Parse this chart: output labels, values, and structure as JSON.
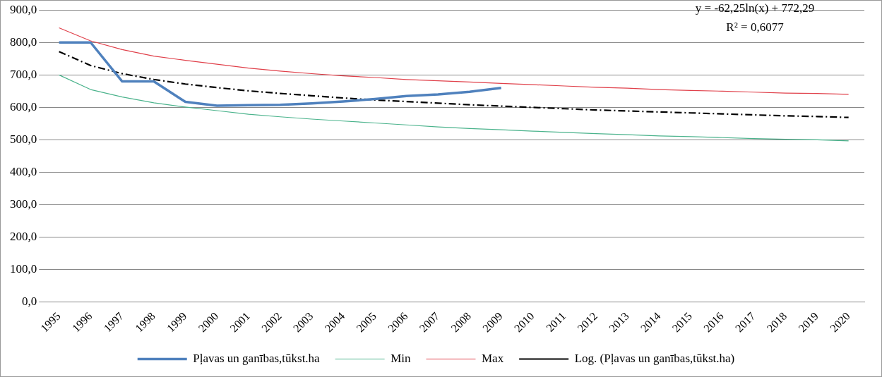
{
  "chart_data": {
    "type": "line",
    "categories": [
      "1995",
      "1996",
      "1997",
      "1998",
      "1999",
      "2000",
      "2001",
      "2002",
      "2003",
      "2004",
      "2005",
      "2006",
      "2007",
      "2008",
      "2009",
      "2010",
      "2011",
      "2012",
      "2013",
      "2014",
      "2015",
      "2016",
      "2017",
      "2018",
      "2019",
      "2020"
    ],
    "series": [
      {
        "name": "Pļavas un ganības,tūkst.ha",
        "color": "#4f81bd",
        "values": [
          800,
          800,
          680,
          680,
          617,
          605,
          607,
          608,
          612,
          618,
          626,
          635,
          640,
          648,
          660,
          null,
          null,
          null,
          null,
          null,
          null,
          null,
          null,
          null,
          null,
          null
        ]
      },
      {
        "name": "Min",
        "color": "#4bb38c",
        "values": [
          700,
          655,
          632,
          614,
          601,
          590,
          579,
          571,
          564,
          558,
          552,
          546,
          540,
          535,
          531,
          527,
          523,
          519,
          516,
          512,
          510,
          507,
          504,
          502,
          500,
          497
        ]
      },
      {
        "name": "Max",
        "color": "#e0404a",
        "values": [
          845,
          805,
          778,
          758,
          745,
          733,
          721,
          712,
          704,
          697,
          692,
          686,
          682,
          678,
          674,
          670,
          666,
          662,
          659,
          655,
          652,
          650,
          647,
          644,
          643,
          640
        ]
      },
      {
        "name": "Log. (Pļavas un ganības,tūkst.ha)",
        "color": "#000000",
        "line_style": "dashed",
        "values": [
          772,
          729,
          704,
          686,
          672,
          661,
          651,
          643,
          636,
          629,
          623,
          618,
          613,
          608,
          604,
          600,
          596,
          592,
          589,
          586,
          583,
          580,
          577,
          574,
          572,
          569
        ]
      }
    ],
    "ylim": [
      0,
      900
    ],
    "yticks": [
      {
        "value": 0,
        "label": "0,0"
      },
      {
        "value": 100,
        "label": "100,0"
      },
      {
        "value": 200,
        "label": "200,0"
      },
      {
        "value": 300,
        "label": "300,0"
      },
      {
        "value": 400,
        "label": "400,0"
      },
      {
        "value": 500,
        "label": "500,0"
      },
      {
        "value": 600,
        "label": "600,0"
      },
      {
        "value": 700,
        "label": "700,0"
      },
      {
        "value": 800,
        "label": "800,0"
      },
      {
        "value": 900,
        "label": "900,0"
      }
    ],
    "grid": "y",
    "legend": "bottom",
    "marker": "none",
    "line_style": "solid",
    "annotations": [
      "y = -62,25ln(x) + 772,29",
      "R² = 0,6077"
    ]
  }
}
